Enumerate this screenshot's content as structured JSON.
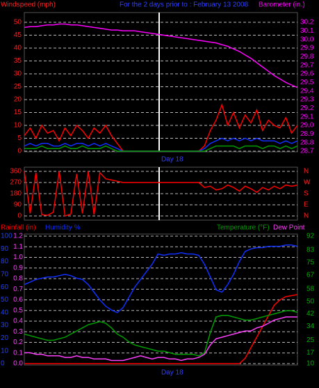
{
  "chart_data": [
    {
      "type": "line",
      "ylabel": "Windspeed (mph)",
      "subtitle": "For the 2 days prior to : February 13 2008",
      "y2label": "Barometer (in.)",
      "xlabel": "Day 18",
      "grid": true,
      "ylim": [
        0,
        50
      ],
      "yticks": [
        0,
        5,
        10,
        15,
        20,
        25,
        30,
        35,
        40,
        45,
        50
      ],
      "ytick_color": "#ff2020",
      "y2lim": [
        28.7,
        30.2
      ],
      "y2ticks": [
        28.7,
        28.8,
        28.9,
        {
          "value": 29,
          "label": "29.0"
        },
        29.1,
        29.2,
        29.3,
        29.4,
        29.5,
        29.6,
        29.7,
        29.8,
        29.9,
        {
          "value": 30,
          "label": "30.0"
        },
        30.1,
        30.2
      ],
      "y2tick_color": "#ff00ff",
      "series": [
        {
          "color": "#ff0000",
          "axis": "y",
          "values": [
            6,
            9,
            5,
            10,
            7,
            8,
            4,
            9,
            6,
            10,
            8,
            5,
            9,
            7,
            10,
            6,
            3,
            0,
            0,
            0,
            0,
            0,
            0,
            0,
            0,
            0,
            0,
            0,
            0,
            0,
            0,
            2,
            8,
            12,
            18,
            10,
            15,
            9,
            14,
            11,
            16,
            8,
            12,
            10,
            9,
            13,
            7,
            10
          ]
        },
        {
          "color": "#1030ff",
          "axis": "y",
          "values": [
            2,
            3,
            2,
            3,
            3,
            2,
            2,
            3,
            2,
            3,
            3,
            2,
            3,
            2,
            3,
            2,
            1,
            0,
            0,
            0,
            0,
            0,
            0,
            0,
            0,
            0,
            0,
            0,
            0,
            0,
            0,
            1,
            3,
            4,
            5,
            4,
            5,
            4,
            5,
            4,
            5,
            4,
            4,
            4,
            3,
            4,
            3,
            4
          ]
        },
        {
          "color": "#00a000",
          "axis": "y",
          "values": [
            1,
            1,
            1,
            2,
            1,
            1,
            1,
            2,
            1,
            1,
            2,
            1,
            1,
            1,
            2,
            1,
            0,
            0,
            0,
            0,
            0,
            0,
            0,
            0,
            0,
            0,
            0,
            0,
            0,
            0,
            0,
            0,
            1,
            2,
            2,
            2,
            2,
            1,
            2,
            2,
            2,
            1,
            2,
            2,
            1,
            2,
            1,
            2
          ]
        },
        {
          "color": "#ff00ff",
          "axis": "y2",
          "values": [
            30.14,
            30.15,
            30.15,
            30.16,
            30.17,
            30.17,
            30.18,
            30.18,
            30.17,
            30.17,
            30.16,
            30.15,
            30.14,
            30.13,
            30.12,
            30.11,
            30.11,
            30.1,
            30.1,
            30.1,
            30.09,
            30.08,
            30.07,
            30.06,
            30.05,
            30.04,
            30.03,
            30.02,
            30.01,
            30.0,
            29.99,
            29.98,
            29.97,
            29.96,
            29.94,
            29.92,
            29.89,
            29.86,
            29.82,
            29.78,
            29.73,
            29.68,
            29.63,
            29.58,
            29.54,
            29.5,
            29.47,
            29.44
          ]
        }
      ]
    },
    {
      "type": "line",
      "grid": true,
      "ylim": [
        0,
        360
      ],
      "yticks": [
        0,
        90,
        180,
        270,
        360
      ],
      "ytick_color": "#ff2020",
      "y2lim": [
        0,
        360
      ],
      "y2ticks": [
        {
          "value": 0,
          "label": "N"
        },
        {
          "value": 90,
          "label": "E"
        },
        {
          "value": 180,
          "label": "S"
        },
        {
          "value": 270,
          "label": "W"
        },
        {
          "value": 360,
          "label": "N"
        }
      ],
      "y2tick_color": "#ff2020",
      "series": [
        {
          "color": "#ff0000",
          "axis": "y",
          "values": [
            360,
            20,
            350,
            10,
            5,
            30,
            360,
            0,
            15,
            340,
            20,
            360,
            10,
            350,
            300,
            290,
            280,
            270,
            270,
            270,
            270,
            270,
            270,
            270,
            270,
            270,
            270,
            270,
            270,
            270,
            270,
            230,
            240,
            210,
            220,
            250,
            230,
            200,
            240,
            220,
            190,
            230,
            210,
            240,
            220,
            250,
            240,
            250
          ]
        }
      ]
    },
    {
      "type": "line",
      "xlabel": "Day 18",
      "grid": true,
      "ylim": [
        0,
        1.2
      ],
      "yticks": [
        {
          "value": 0,
          "label": "0.0"
        },
        0.1,
        0.2,
        0.3,
        0.4,
        0.5,
        0.6,
        0.7,
        0.8,
        0.9,
        {
          "value": 1,
          "label": "1.0"
        },
        1.1,
        1.2
      ],
      "ytick_color": "#ff40ff",
      "y2lim": [
        10,
        92
      ],
      "y2ticks": [
        10,
        17,
        25,
        34,
        42,
        50,
        58,
        67,
        75,
        83,
        92
      ],
      "y2tick_color": "#00b000",
      "y3lim": [
        0,
        100
      ],
      "y3ticks": [
        0,
        10,
        20,
        30,
        40,
        50,
        60,
        70,
        80,
        90,
        100
      ],
      "y3tick_color": "#2040ff",
      "series": [
        {
          "name": "Rainfall (in)",
          "color": "#ff0000",
          "axis": "y",
          "values": [
            0,
            0,
            0,
            0,
            0,
            0,
            0,
            0,
            0,
            0,
            0,
            0,
            0,
            0,
            0,
            0,
            0,
            0,
            0,
            0,
            0,
            0,
            0,
            0,
            0,
            0,
            0,
            0,
            0,
            0,
            0,
            0,
            0,
            0,
            0,
            0,
            0,
            0,
            0.05,
            0.15,
            0.25,
            0.35,
            0.45,
            0.55,
            0.6,
            0.63,
            0.64,
            0.65
          ]
        },
        {
          "name": "Humidity %",
          "color": "#1030ff",
          "axis": "y3",
          "values": [
            62,
            64,
            66,
            67,
            68,
            68,
            69,
            70,
            69,
            67,
            66,
            62,
            56,
            50,
            45,
            42,
            40,
            44,
            52,
            60,
            66,
            72,
            78,
            86,
            85,
            86,
            86,
            87,
            86,
            86,
            85,
            78,
            68,
            58,
            56,
            62,
            70,
            80,
            88,
            90,
            91,
            91,
            92,
            92,
            92,
            93,
            93,
            92
          ]
        },
        {
          "name": "Temperature (°F)",
          "color": "#00a000",
          "axis": "y2",
          "values": [
            29,
            28,
            27,
            26,
            25,
            25,
            26,
            27,
            29,
            31,
            33,
            35,
            36,
            37,
            36,
            33,
            29,
            27,
            24,
            22,
            21,
            20,
            19,
            18,
            18,
            17,
            16,
            16,
            16,
            16,
            15,
            17,
            30,
            40,
            41,
            41,
            40,
            39,
            38,
            38,
            39,
            40,
            41,
            42,
            43,
            44,
            44,
            43
          ]
        },
        {
          "name": "Dew Point",
          "color": "#ff40ff",
          "axis": "y2",
          "values": [
            17,
            17,
            16,
            16,
            15,
            15,
            15,
            14,
            14,
            15,
            14,
            14,
            13,
            13,
            13,
            12,
            12,
            12,
            13,
            14,
            15,
            14,
            13,
            14,
            14,
            13,
            13,
            12,
            13,
            13,
            14,
            16,
            22,
            26,
            27,
            28,
            29,
            30,
            31,
            31,
            33,
            34,
            36,
            38,
            39,
            40,
            40,
            40
          ]
        }
      ]
    }
  ]
}
